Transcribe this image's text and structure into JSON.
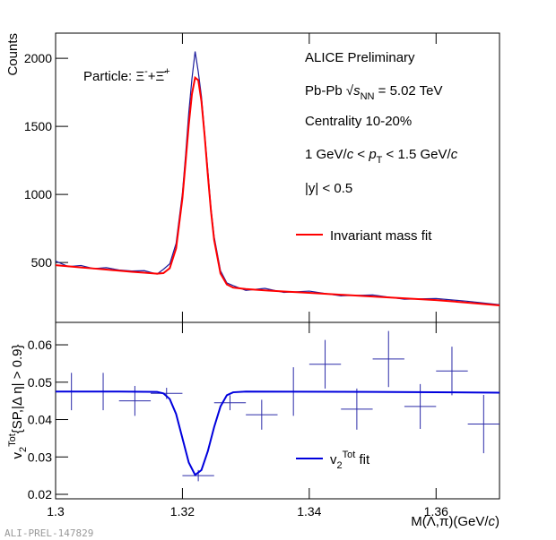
{
  "chart_data": [
    {
      "type": "line",
      "ylabel": "Counts",
      "annotations": [
        [
          [
            "Particle: Ξ",
            "normal"
          ],
          [
            "-",
            "sup"
          ],
          [
            "+Ξ̄",
            "normal"
          ],
          [
            "+",
            "sup"
          ]
        ],
        [
          [
            "ALICE Preliminary",
            "normal"
          ]
        ],
        [
          [
            "Pb-Pb √",
            "normal"
          ],
          [
            "s",
            "italic"
          ],
          [
            "NN",
            "sub"
          ],
          [
            " = 5.02 TeV",
            "normal"
          ]
        ],
        [
          [
            "Centrality 10-20%",
            "normal"
          ]
        ],
        [
          [
            "1 GeV/",
            "normal"
          ],
          [
            "c",
            "italic"
          ],
          [
            " < ",
            "normal"
          ],
          [
            "p",
            "italic"
          ],
          [
            "T",
            "sub"
          ],
          [
            " < 1.5 GeV/",
            "normal"
          ],
          [
            "c",
            "italic"
          ]
        ],
        [
          [
            "|y| < 0.5",
            "normal"
          ]
        ]
      ],
      "xlim": [
        1.3,
        1.37
      ],
      "xticks": [
        1.3,
        1.32,
        1.34,
        1.36
      ],
      "ylim": [
        60,
        2185
      ],
      "yticks": [
        500,
        1000,
        1500,
        2000
      ],
      "grid": false,
      "series": [
        {
          "color": "#1c1c9c",
          "x": [
            1.3,
            1.302,
            1.304,
            1.306,
            1.308,
            1.31,
            1.312,
            1.314,
            1.316,
            1.317,
            1.318,
            1.319,
            1.32,
            1.3205,
            1.321,
            1.3215,
            1.322,
            1.3225,
            1.323,
            1.3235,
            1.324,
            1.3245,
            1.325,
            1.326,
            1.327,
            1.328,
            1.33,
            1.333,
            1.336,
            1.34,
            1.345,
            1.35,
            1.355,
            1.36,
            1.365,
            1.37
          ],
          "values": [
            510,
            470,
            478,
            455,
            462,
            445,
            438,
            440,
            415,
            450,
            490,
            640,
            1010,
            1290,
            1600,
            1850,
            2050,
            1900,
            1720,
            1450,
            1180,
            900,
            690,
            440,
            350,
            330,
            295,
            310,
            280,
            290,
            255,
            262,
            230,
            235,
            215,
            190
          ]
        },
        {
          "name": [
            [
              "Invariant mass fit",
              "normal"
            ]
          ],
          "color": "#ff0000",
          "x": [
            1.3,
            1.302,
            1.304,
            1.306,
            1.308,
            1.31,
            1.312,
            1.314,
            1.316,
            1.317,
            1.318,
            1.319,
            1.32,
            1.3205,
            1.321,
            1.3215,
            1.322,
            1.3225,
            1.323,
            1.3235,
            1.324,
            1.3245,
            1.325,
            1.326,
            1.327,
            1.328,
            1.33,
            1.333,
            1.336,
            1.34,
            1.345,
            1.35,
            1.355,
            1.36,
            1.365,
            1.37
          ],
          "values": [
            480,
            472,
            464,
            456,
            448,
            440,
            432,
            425,
            418,
            422,
            458,
            603,
            973,
            1238,
            1513,
            1738,
            1858,
            1839,
            1684,
            1433,
            1146,
            879,
            665,
            419,
            339,
            316,
            305,
            295,
            287,
            277,
            263,
            250,
            237,
            224,
            205,
            185
          ]
        }
      ]
    },
    {
      "type": "errorbar",
      "ylabel": [
        [
          "v",
          "normal"
        ],
        [
          "2",
          "sub"
        ],
        [
          "Tot",
          "sup"
        ],
        [
          "{SP,|Δ η| > 0.9}",
          "normal"
        ]
      ],
      "xlabel": [
        [
          "M(Λ,π)(GeV/",
          "normal"
        ],
        [
          "c",
          "italic"
        ],
        [
          ")",
          "normal"
        ]
      ],
      "xlim": [
        1.3,
        1.37
      ],
      "xticks": [
        1.3,
        1.32,
        1.34,
        1.36
      ],
      "ylim": [
        0.0188,
        0.066
      ],
      "yticks": [
        0.02,
        0.03,
        0.04,
        0.05,
        0.06
      ],
      "grid": false,
      "series": [
        {
          "color": "#2a2aa8",
          "x": [
            1.3025,
            1.3075,
            1.3125,
            1.3175,
            1.3225,
            1.3275,
            1.3325,
            1.3375,
            1.3425,
            1.3475,
            1.3525,
            1.3575,
            1.3625,
            1.3675
          ],
          "xerr": [
            0.0025,
            0.0025,
            0.0025,
            0.0025,
            0.0025,
            0.0025,
            0.0025,
            0.0025,
            0.0025,
            0.0025,
            0.0025,
            0.0025,
            0.0025,
            0.0025
          ],
          "values": [
            0.0475,
            0.0475,
            0.045,
            0.047,
            0.025,
            0.0445,
            0.0413,
            0.0475,
            0.0548,
            0.0428,
            0.0562,
            0.0435,
            0.053,
            0.0388
          ],
          "errors": [
            0.005,
            0.005,
            0.004,
            0.0015,
            0.0015,
            0.002,
            0.004,
            0.0065,
            0.0065,
            0.0055,
            0.0075,
            0.006,
            0.0065,
            0.0078
          ]
        },
        {
          "name": [
            [
              "v",
              "normal"
            ],
            [
              "2",
              "sub"
            ],
            [
              "Tot",
              "sup"
            ],
            [
              " fit",
              "normal"
            ]
          ],
          "color": "#0000dd",
          "x": [
            1.3,
            1.31,
            1.316,
            1.317,
            1.318,
            1.319,
            1.32,
            1.321,
            1.322,
            1.323,
            1.324,
            1.325,
            1.326,
            1.327,
            1.328,
            1.33,
            1.35,
            1.37
          ],
          "values": [
            0.0475,
            0.0475,
            0.0474,
            0.047,
            0.0455,
            0.0415,
            0.035,
            0.0285,
            0.0252,
            0.0265,
            0.0315,
            0.038,
            0.0435,
            0.0465,
            0.0473,
            0.0475,
            0.0474,
            0.0472
          ]
        }
      ]
    }
  ],
  "footnote": "ALI-PREL-147829"
}
